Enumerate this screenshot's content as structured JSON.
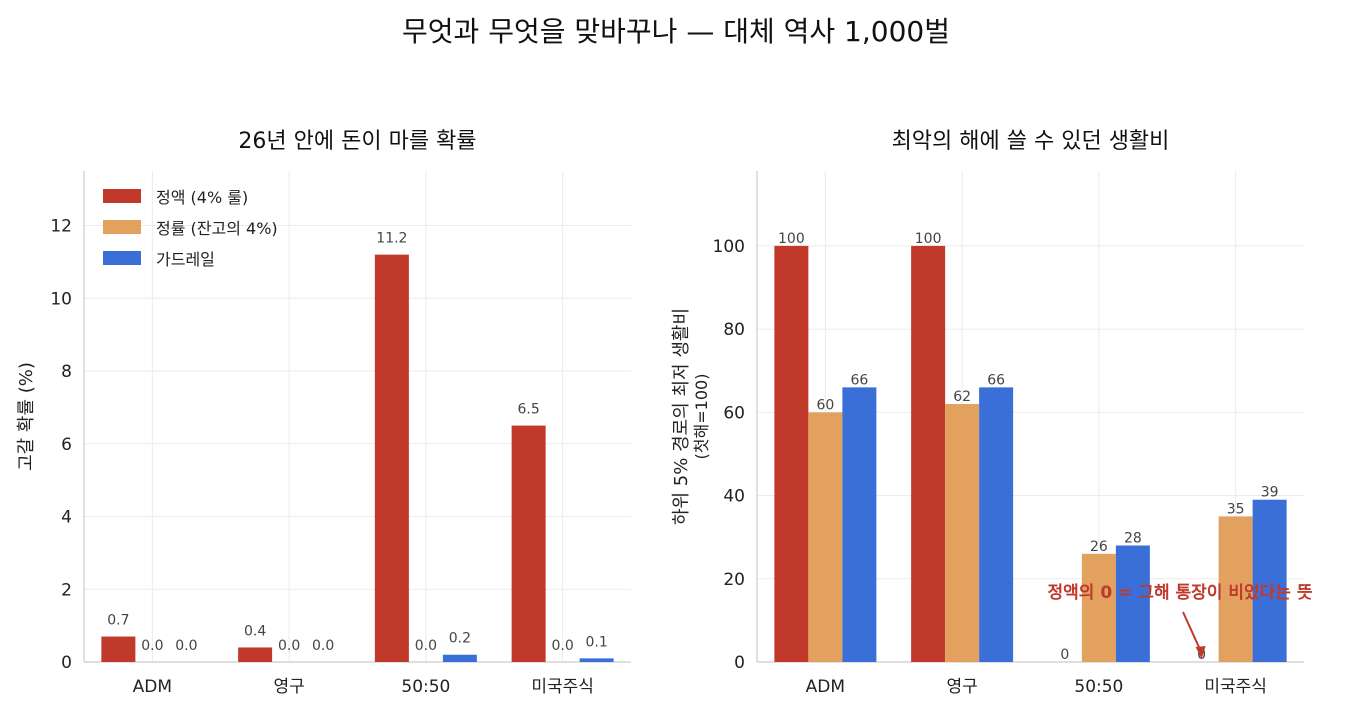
{
  "figure": {
    "title": "무엇과 무엇을 맞바꾸나 — 대체 역사 1,000벌"
  },
  "chart_data": [
    {
      "type": "bar",
      "title": "26년 안에 돈이 마를 확률",
      "xlabel": "",
      "ylabel": "고갈 확률 (%)",
      "categories": [
        "ADM",
        "영구",
        "50:50",
        "미국주식"
      ],
      "ylim": [
        0,
        13.5
      ],
      "yticks": [
        0,
        2,
        4,
        6,
        8,
        10,
        12
      ],
      "grid": true,
      "legend_position": "top-left",
      "series": [
        {
          "name": "정액 (4% 룰)",
          "color": "#c0392b",
          "values": [
            0.7,
            0.4,
            11.2,
            6.5
          ],
          "labels": [
            "0.7",
            "0.4",
            "11.2",
            "6.5"
          ]
        },
        {
          "name": "정률 (잔고의 4%)",
          "color": "#e2a15f",
          "values": [
            0.0,
            0.0,
            0.0,
            0.0
          ],
          "labels": [
            "0.0",
            "0.0",
            "0.0",
            "0.0"
          ]
        },
        {
          "name": "가드레일",
          "color": "#3a6fd8",
          "values": [
            0.0,
            0.0,
            0.2,
            0.1
          ],
          "labels": [
            "0.0",
            "0.0",
            "0.2",
            "0.1"
          ]
        }
      ]
    },
    {
      "type": "bar",
      "title": "최악의 해에 쓸 수 있던 생활비",
      "xlabel": "",
      "ylabel": "하위 5% 경로의 최저 생활비",
      "ylabel2": "(첫해=100)",
      "categories": [
        "ADM",
        "영구",
        "50:50",
        "미국주식"
      ],
      "ylim": [
        0,
        118
      ],
      "yticks": [
        0,
        20,
        40,
        60,
        80,
        100
      ],
      "grid": true,
      "series": [
        {
          "name": "정액 (4% 룰)",
          "color": "#c0392b",
          "values": [
            100,
            100,
            0,
            0
          ],
          "labels": [
            "100",
            "100",
            "0",
            "0"
          ]
        },
        {
          "name": "정률 (잔고의 4%)",
          "color": "#e2a15f",
          "values": [
            60,
            62,
            26,
            35
          ],
          "labels": [
            "60",
            "62",
            "26",
            "35"
          ]
        },
        {
          "name": "가드레일",
          "color": "#3a6fd8",
          "values": [
            66,
            66,
            28,
            39
          ],
          "labels": [
            "66",
            "66",
            "28",
            "39"
          ]
        }
      ],
      "annotation": {
        "text_before": "정액의 ",
        "text_bold": "0",
        "text_after": " = 그해 통장이 비었다는 뜻",
        "color": "#c0392b",
        "target_category": "미국주식",
        "target_series": 0
      }
    }
  ]
}
